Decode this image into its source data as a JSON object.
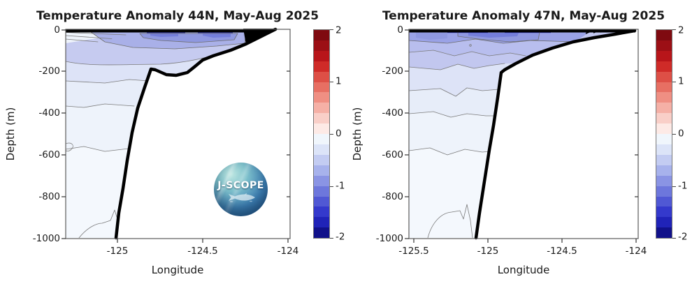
{
  "figure": {
    "background": "#ffffff",
    "logo": {
      "text": "J-SCOPE"
    }
  },
  "panels": [
    {
      "title": "Temperature Anomaly 44N, May-Aug 2025",
      "xlabel": "Longitude",
      "ylabel": "Depth (m)",
      "x_tick_labels": [
        "-125",
        "-124.5",
        "-124"
      ],
      "y_tick_labels": [
        "0",
        "-200",
        "-400",
        "-600",
        "-800",
        "-1000"
      ]
    },
    {
      "title": "Temperature Anomaly 47N, May-Aug 2025",
      "xlabel": "Longitude",
      "ylabel": "Depth (m)",
      "x_tick_labels": [
        "-125.5",
        "-125",
        "-124.5",
        "-124"
      ],
      "y_tick_labels": [
        "0",
        "-200",
        "-400",
        "-600",
        "-800",
        "-1000"
      ]
    }
  ],
  "colorbar": {
    "tick_labels": [
      "2",
      "1",
      "0",
      "-1",
      "-2"
    ],
    "range": [
      -2,
      2
    ],
    "n_segments": 20,
    "segment_colors": [
      "#7f0a10",
      "#9c0f15",
      "#b8151a",
      "#cf2b28",
      "#dd4f46",
      "#e76f63",
      "#ef8f83",
      "#f5b0a6",
      "#f9cfc8",
      "#fdeae6",
      "#f0f6fc",
      "#dce4f8",
      "#c3ccf2",
      "#a7b2ec",
      "#8a94e4",
      "#6d77dc",
      "#5058d4",
      "#3439cc",
      "#2023b8",
      "#11118a"
    ]
  },
  "chart_data": [
    {
      "type": "contour",
      "title": "Temperature Anomaly 44N, May-Aug 2025",
      "xlabel": "Longitude",
      "ylabel": "Depth (m)",
      "xlim": [
        -125.3,
        -124.0
      ],
      "ylim": [
        -1000,
        0
      ],
      "x_ticks": [
        -125,
        -124.5,
        -124
      ],
      "y_ticks": [
        0,
        -200,
        -400,
        -600,
        -800,
        -1000
      ],
      "colorbar_range": [
        -2,
        2
      ],
      "colorbar_ticks": [
        2,
        1,
        0,
        -1,
        -2
      ],
      "contour_level_step": 0.2,
      "anomaly_features": {
        "near_surface_core": "strongest cold anomaly -1.0 to -1.6 in upper ~30 m between lon -124.85 and -124.25",
        "upper_band": "-0.4 to -0.8 anomaly band from surface to ~-150 m across the section",
        "mid_depth": "-0.2 to -0.4 between ~-150 m and ~-400 m",
        "deep": "about 0 to -0.2 below ~-400 m"
      },
      "bathymetry_lon_depth_m": [
        [
          -125.01,
          -1000
        ],
        [
          -124.99,
          -877
        ],
        [
          -124.97,
          -760
        ],
        [
          -124.94,
          -627
        ],
        [
          -124.91,
          -493
        ],
        [
          -124.88,
          -377
        ],
        [
          -124.84,
          -277
        ],
        [
          -124.8,
          -190
        ],
        [
          -124.75,
          -195
        ],
        [
          -124.71,
          -217
        ],
        [
          -124.59,
          -207
        ],
        [
          -124.55,
          -180
        ],
        [
          -124.5,
          -147
        ],
        [
          -124.34,
          -100
        ],
        [
          -124.25,
          -70
        ],
        [
          -124.07,
          0
        ]
      ],
      "legend_position": "right-colorbar",
      "grid": false
    },
    {
      "type": "contour",
      "title": "Temperature Anomaly 47N, May-Aug 2025",
      "xlabel": "Longitude",
      "ylabel": "Depth (m)",
      "xlim": [
        -125.53,
        -124.0
      ],
      "ylim": [
        -1000,
        0
      ],
      "x_ticks": [
        -125.5,
        -125,
        -124.5,
        -124
      ],
      "y_ticks": [
        0,
        -200,
        -400,
        -600,
        -800,
        -1000
      ],
      "colorbar_range": [
        -2,
        2
      ],
      "colorbar_ticks": [
        2,
        1,
        0,
        -1,
        -2
      ],
      "contour_level_step": 0.2,
      "anomaly_features": {
        "near_surface_core": "strongest cold anomaly -1.0 to -1.6 in upper ~30 m between lon -125.3 and -124.6",
        "upper_band": "-0.4 to -0.8 anomaly band from surface to ~-130 m, shoaling toward the coast",
        "mid_depth": "-0.2 to -0.4 between ~-130 m and ~-400 m",
        "deep": "about 0 to -0.2 below ~-400 m, weak closed 0 contour near bottom at lon ~-125.1"
      },
      "bathymetry_lon_depth_m": [
        [
          -125.08,
          -1000
        ],
        [
          -125.06,
          -873
        ],
        [
          -125.03,
          -723
        ],
        [
          -124.99,
          -573
        ],
        [
          -124.96,
          -457
        ],
        [
          -124.94,
          -323
        ],
        [
          -124.89,
          -190
        ],
        [
          -124.81,
          -160
        ],
        [
          -124.7,
          -120
        ],
        [
          -124.57,
          -87
        ],
        [
          -124.43,
          -57
        ],
        [
          -124.29,
          -37
        ],
        [
          -124.03,
          0
        ]
      ],
      "legend_position": "right-colorbar",
      "grid": false
    }
  ]
}
